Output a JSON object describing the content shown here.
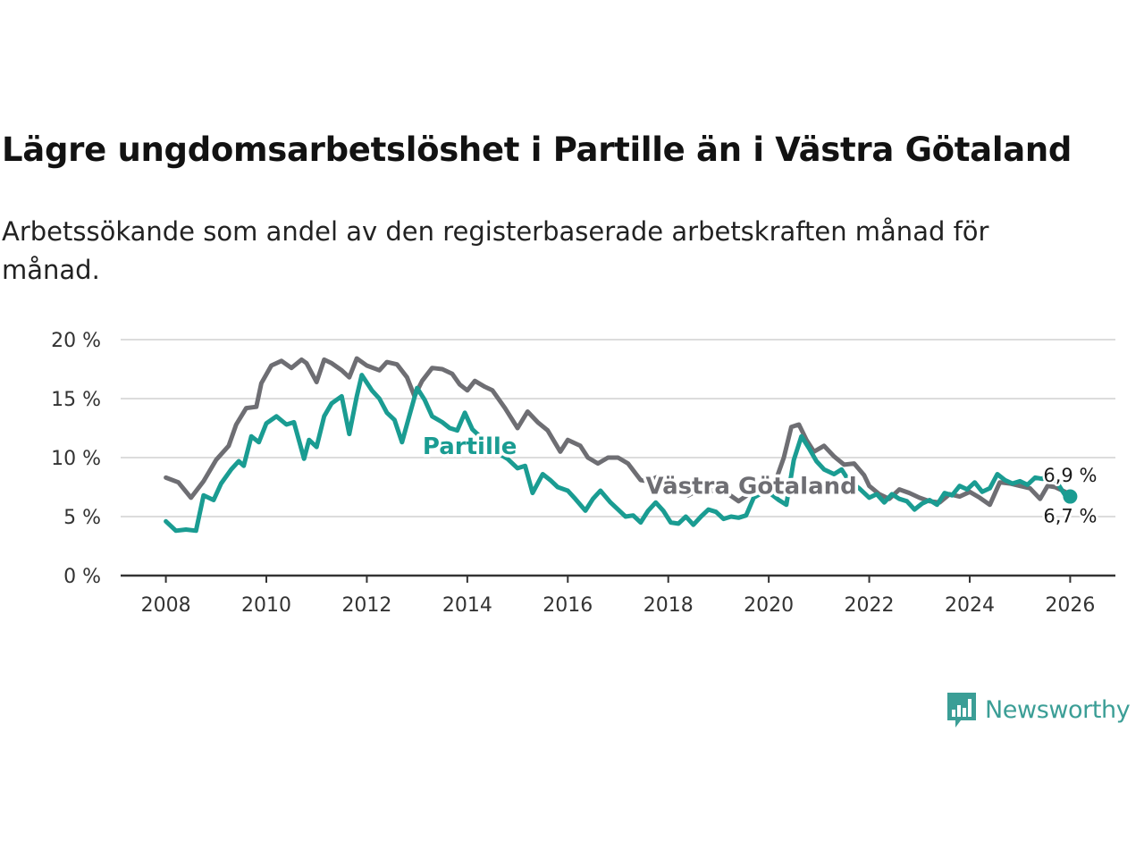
{
  "header": {
    "title": "Lägre ungdomsarbetslöshet i Partille än i Västra Götaland",
    "subtitle": "Arbetssökande som andel av den registerbaserade arbetskraften månad för månad."
  },
  "logo": {
    "text": "Newsworthy",
    "icon": "newsworthy-chart-icon"
  },
  "colors": {
    "partille": "#1a9c92",
    "vastra_gotaland": "#6e6e73",
    "grid": "#dcdcdc",
    "axis": "#333333",
    "brand": "#3b9e96"
  },
  "chart_data": {
    "type": "line",
    "title": "Lägre ungdomsarbetslöshet i Partille än i Västra Götaland",
    "subtitle": "Arbetssökande som andel av den registerbaserade arbetskraften månad för månad.",
    "xlabel": "",
    "ylabel": "",
    "xlim": [
      2007.1,
      2026.9
    ],
    "ylim": [
      0,
      20
    ],
    "x_ticks": [
      2008,
      2010,
      2012,
      2014,
      2016,
      2018,
      2020,
      2022,
      2024,
      2026
    ],
    "x_tick_labels": [
      "2008",
      "2010",
      "2012",
      "2014",
      "2016",
      "2018",
      "2020",
      "2022",
      "2024",
      "2026"
    ],
    "y_ticks": [
      0,
      5,
      10,
      15,
      20
    ],
    "y_tick_labels": [
      "0 %",
      "5 %",
      "10 %",
      "15 %",
      "20 %"
    ],
    "grid": "horizontal",
    "series": [
      {
        "name": "Västra Götaland",
        "label": "Västra Götaland",
        "color": "#6e6e73",
        "end_value_label": "6,9 %",
        "points": [
          [
            2008.0,
            8.3
          ],
          [
            2008.25,
            7.9
          ],
          [
            2008.5,
            6.6
          ],
          [
            2008.75,
            8.0
          ],
          [
            2009.0,
            9.8
          ],
          [
            2009.25,
            11.0
          ],
          [
            2009.4,
            12.8
          ],
          [
            2009.6,
            14.2
          ],
          [
            2009.8,
            14.3
          ],
          [
            2009.9,
            16.3
          ],
          [
            2010.1,
            17.8
          ],
          [
            2010.3,
            18.2
          ],
          [
            2010.5,
            17.6
          ],
          [
            2010.7,
            18.3
          ],
          [
            2010.8,
            18.0
          ],
          [
            2011.0,
            16.4
          ],
          [
            2011.15,
            18.3
          ],
          [
            2011.3,
            18.0
          ],
          [
            2011.5,
            17.4
          ],
          [
            2011.65,
            16.8
          ],
          [
            2011.8,
            18.4
          ],
          [
            2012.0,
            17.8
          ],
          [
            2012.25,
            17.4
          ],
          [
            2012.4,
            18.1
          ],
          [
            2012.6,
            17.9
          ],
          [
            2012.8,
            16.8
          ],
          [
            2012.95,
            15.2
          ],
          [
            2013.1,
            16.5
          ],
          [
            2013.3,
            17.6
          ],
          [
            2013.5,
            17.5
          ],
          [
            2013.7,
            17.1
          ],
          [
            2013.85,
            16.2
          ],
          [
            2014.0,
            15.7
          ],
          [
            2014.15,
            16.5
          ],
          [
            2014.35,
            16.0
          ],
          [
            2014.5,
            15.7
          ],
          [
            2014.75,
            14.2
          ],
          [
            2015.0,
            12.5
          ],
          [
            2015.2,
            13.9
          ],
          [
            2015.4,
            13.0
          ],
          [
            2015.6,
            12.3
          ],
          [
            2015.85,
            10.5
          ],
          [
            2016.0,
            11.5
          ],
          [
            2016.25,
            11.0
          ],
          [
            2016.4,
            10.0
          ],
          [
            2016.6,
            9.5
          ],
          [
            2016.8,
            10.0
          ],
          [
            2017.0,
            10.0
          ],
          [
            2017.2,
            9.5
          ],
          [
            2017.45,
            8.1
          ],
          [
            2017.6,
            8.0
          ],
          [
            2017.8,
            8.4
          ],
          [
            2018.0,
            7.6
          ],
          [
            2018.2,
            7.2
          ],
          [
            2018.4,
            6.8
          ],
          [
            2018.7,
            7.5
          ],
          [
            2019.0,
            7.0
          ],
          [
            2019.2,
            6.9
          ],
          [
            2019.4,
            6.3
          ],
          [
            2019.6,
            6.9
          ],
          [
            2019.8,
            7.0
          ],
          [
            2020.0,
            7.0
          ],
          [
            2020.15,
            8.2
          ],
          [
            2020.3,
            10.0
          ],
          [
            2020.45,
            12.6
          ],
          [
            2020.6,
            12.8
          ],
          [
            2020.75,
            11.5
          ],
          [
            2020.9,
            10.5
          ],
          [
            2021.1,
            11.0
          ],
          [
            2021.3,
            10.1
          ],
          [
            2021.5,
            9.4
          ],
          [
            2021.7,
            9.5
          ],
          [
            2021.9,
            8.5
          ],
          [
            2022.0,
            7.6
          ],
          [
            2022.2,
            6.9
          ],
          [
            2022.4,
            6.5
          ],
          [
            2022.6,
            7.3
          ],
          [
            2022.8,
            7.0
          ],
          [
            2023.0,
            6.6
          ],
          [
            2023.2,
            6.3
          ],
          [
            2023.4,
            6.2
          ],
          [
            2023.6,
            6.9
          ],
          [
            2023.8,
            6.7
          ],
          [
            2024.0,
            7.1
          ],
          [
            2024.2,
            6.6
          ],
          [
            2024.4,
            6.0
          ],
          [
            2024.6,
            7.9
          ],
          [
            2024.8,
            7.8
          ],
          [
            2025.0,
            7.6
          ],
          [
            2025.2,
            7.4
          ],
          [
            2025.4,
            6.5
          ],
          [
            2025.55,
            7.6
          ],
          [
            2025.7,
            7.5
          ],
          [
            2025.85,
            7.2
          ],
          [
            2026.0,
            6.9
          ]
        ]
      },
      {
        "name": "Partille",
        "label": "Partille",
        "color": "#1a9c92",
        "end_value_label": "6,7 %",
        "points": [
          [
            2008.0,
            4.6
          ],
          [
            2008.2,
            3.8
          ],
          [
            2008.4,
            3.9
          ],
          [
            2008.6,
            3.8
          ],
          [
            2008.75,
            6.8
          ],
          [
            2008.95,
            6.4
          ],
          [
            2009.1,
            7.8
          ],
          [
            2009.3,
            9.0
          ],
          [
            2009.45,
            9.7
          ],
          [
            2009.55,
            9.3
          ],
          [
            2009.7,
            11.8
          ],
          [
            2009.85,
            11.3
          ],
          [
            2010.0,
            12.9
          ],
          [
            2010.2,
            13.5
          ],
          [
            2010.4,
            12.8
          ],
          [
            2010.55,
            13.0
          ],
          [
            2010.75,
            9.9
          ],
          [
            2010.85,
            11.5
          ],
          [
            2011.0,
            10.9
          ],
          [
            2011.15,
            13.5
          ],
          [
            2011.3,
            14.6
          ],
          [
            2011.5,
            15.2
          ],
          [
            2011.65,
            12.0
          ],
          [
            2011.8,
            15.2
          ],
          [
            2011.9,
            17.0
          ],
          [
            2012.1,
            15.7
          ],
          [
            2012.25,
            15.0
          ],
          [
            2012.4,
            13.8
          ],
          [
            2012.55,
            13.2
          ],
          [
            2012.7,
            11.3
          ],
          [
            2012.85,
            13.6
          ],
          [
            2013.0,
            15.9
          ],
          [
            2013.15,
            14.9
          ],
          [
            2013.3,
            13.5
          ],
          [
            2013.5,
            13.0
          ],
          [
            2013.65,
            12.5
          ],
          [
            2013.8,
            12.3
          ],
          [
            2013.95,
            13.8
          ],
          [
            2014.1,
            12.4
          ],
          [
            2014.25,
            11.8
          ],
          [
            2014.45,
            11.5
          ],
          [
            2014.6,
            10.4
          ],
          [
            2014.8,
            9.9
          ],
          [
            2015.0,
            9.1
          ],
          [
            2015.15,
            9.3
          ],
          [
            2015.3,
            7.0
          ],
          [
            2015.5,
            8.6
          ],
          [
            2015.65,
            8.1
          ],
          [
            2015.8,
            7.5
          ],
          [
            2016.0,
            7.2
          ],
          [
            2016.15,
            6.5
          ],
          [
            2016.35,
            5.5
          ],
          [
            2016.5,
            6.5
          ],
          [
            2016.65,
            7.2
          ],
          [
            2016.85,
            6.2
          ],
          [
            2017.0,
            5.6
          ],
          [
            2017.15,
            5.0
          ],
          [
            2017.3,
            5.1
          ],
          [
            2017.45,
            4.5
          ],
          [
            2017.6,
            5.5
          ],
          [
            2017.75,
            6.2
          ],
          [
            2017.9,
            5.5
          ],
          [
            2018.05,
            4.5
          ],
          [
            2018.2,
            4.4
          ],
          [
            2018.35,
            5.0
          ],
          [
            2018.5,
            4.3
          ],
          [
            2018.65,
            5.0
          ],
          [
            2018.8,
            5.6
          ],
          [
            2018.95,
            5.4
          ],
          [
            2019.1,
            4.8
          ],
          [
            2019.25,
            5.0
          ],
          [
            2019.4,
            4.9
          ],
          [
            2019.55,
            5.1
          ],
          [
            2019.7,
            6.6
          ],
          [
            2019.9,
            7.1
          ],
          [
            2020.05,
            6.9
          ],
          [
            2020.2,
            6.4
          ],
          [
            2020.35,
            6.0
          ],
          [
            2020.5,
            9.8
          ],
          [
            2020.65,
            11.8
          ],
          [
            2020.8,
            10.8
          ],
          [
            2020.95,
            9.7
          ],
          [
            2021.1,
            9.0
          ],
          [
            2021.3,
            8.6
          ],
          [
            2021.45,
            9.0
          ],
          [
            2021.6,
            8.0
          ],
          [
            2021.8,
            7.4
          ],
          [
            2022.0,
            6.6
          ],
          [
            2022.15,
            6.9
          ],
          [
            2022.3,
            6.2
          ],
          [
            2022.45,
            6.9
          ],
          [
            2022.6,
            6.5
          ],
          [
            2022.75,
            6.3
          ],
          [
            2022.9,
            5.6
          ],
          [
            2023.05,
            6.1
          ],
          [
            2023.2,
            6.4
          ],
          [
            2023.35,
            6.0
          ],
          [
            2023.5,
            7.0
          ],
          [
            2023.65,
            6.8
          ],
          [
            2023.8,
            7.6
          ],
          [
            2023.95,
            7.3
          ],
          [
            2024.1,
            7.9
          ],
          [
            2024.25,
            7.1
          ],
          [
            2024.4,
            7.4
          ],
          [
            2024.55,
            8.6
          ],
          [
            2024.7,
            8.1
          ],
          [
            2024.85,
            7.8
          ],
          [
            2025.0,
            8.0
          ],
          [
            2025.15,
            7.7
          ],
          [
            2025.3,
            8.3
          ],
          [
            2025.45,
            8.2
          ],
          [
            2025.6,
            8.8
          ],
          [
            2025.75,
            7.8
          ],
          [
            2025.9,
            6.8
          ],
          [
            2026.0,
            6.7
          ]
        ]
      }
    ]
  }
}
